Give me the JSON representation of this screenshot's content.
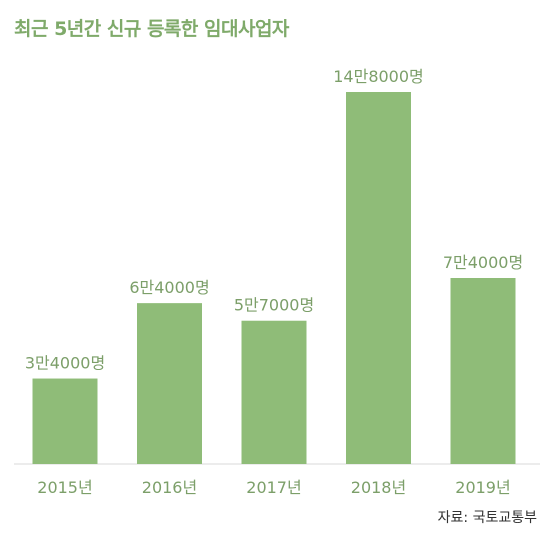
{
  "title": "최근 5년간 신규 등록한 임대사업자",
  "source": "자료: 국토교통부",
  "colors": {
    "bar": "#8fbc78",
    "title": "#7faa6a",
    "label": "#7c9f69"
  },
  "chart_data": {
    "type": "bar",
    "title": "최근 5년간 신규 등록한 임대사업자",
    "categories": [
      "2015년",
      "2016년",
      "2017년",
      "2018년",
      "2019년"
    ],
    "values": [
      34000,
      64000,
      57000,
      148000,
      74000
    ],
    "value_labels": [
      "3만4000명",
      "6만4000명",
      "5만7000명",
      "14만8000명",
      "7만4000명"
    ],
    "xlabel": "",
    "ylabel": "",
    "ylim": [
      0,
      148000
    ],
    "grid": false,
    "legend": "none"
  }
}
